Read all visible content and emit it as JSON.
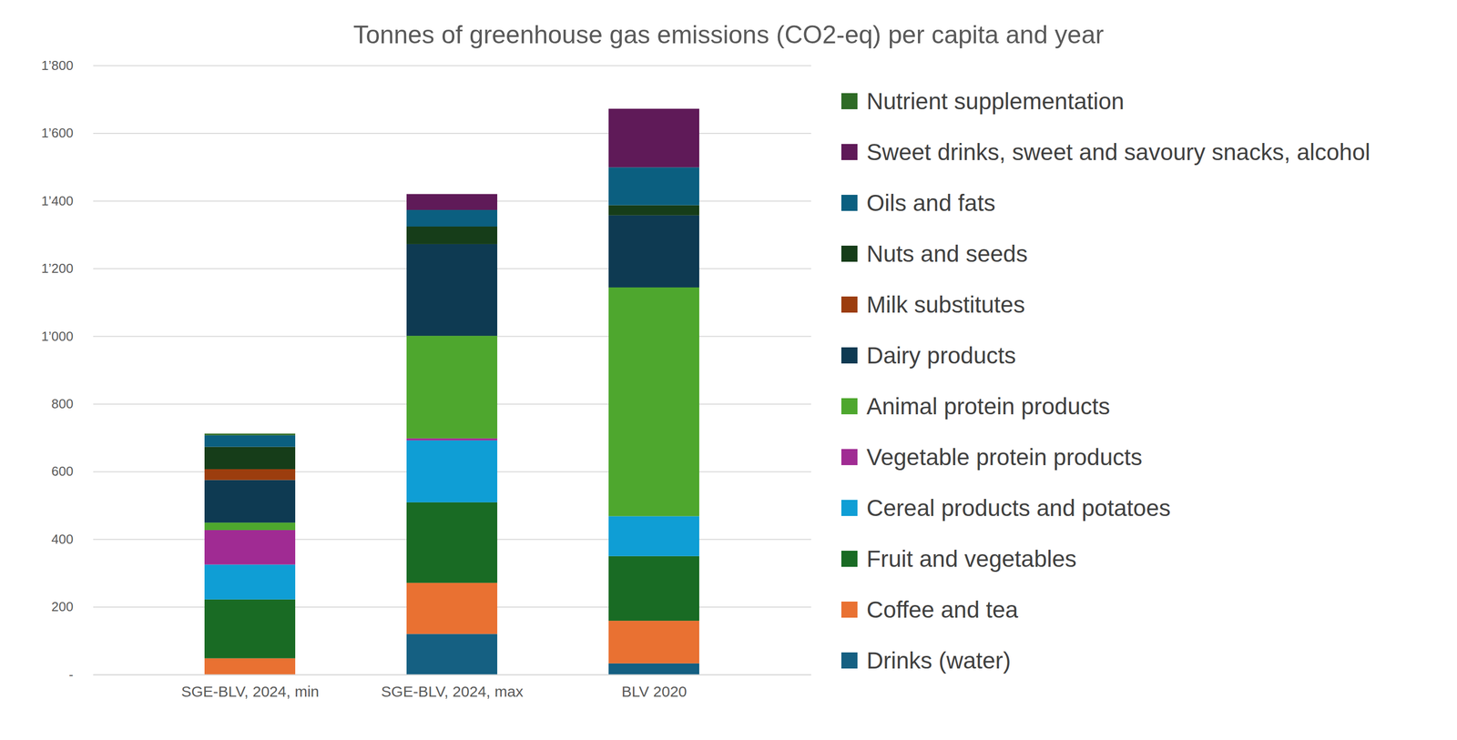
{
  "chart_data": {
    "type": "bar",
    "stacked": true,
    "title": "Tonnes of greenhouse gas emissions (CO2-eq) per capita and year",
    "categories": [
      "SGE-BLV, 2024, min",
      "SGE-BLV, 2024, max",
      "BLV 2020"
    ],
    "series": [
      {
        "name": "Drinks (water)",
        "color": "#156082",
        "values": [
          0,
          120,
          33
        ]
      },
      {
        "name": "Coffee and tea",
        "color": "#e97132",
        "values": [
          48,
          151,
          126
        ]
      },
      {
        "name": "Fruit and vegetables",
        "color": "#196b24",
        "values": [
          174,
          238,
          191
        ]
      },
      {
        "name": "Cereal products and potatoes",
        "color": "#0f9ed5",
        "values": [
          103,
          183,
          118
        ]
      },
      {
        "name": "Vegetable protein products",
        "color": "#a02b93",
        "values": [
          102,
          6,
          0
        ]
      },
      {
        "name": "Animal protein products",
        "color": "#4ea72e",
        "values": [
          22,
          303,
          676
        ]
      },
      {
        "name": "Dairy products",
        "color": "#0e3a52",
        "values": [
          126,
          271,
          213
        ]
      },
      {
        "name": "Milk substitutes",
        "color": "#9c3d0e",
        "values": [
          32,
          0,
          0
        ]
      },
      {
        "name": "Nuts and seeds",
        "color": "#163d19",
        "values": [
          66,
          52,
          30
        ]
      },
      {
        "name": "Oils and fats",
        "color": "#0b5f80",
        "values": [
          34,
          49,
          112
        ]
      },
      {
        "name": "Sweet drinks, sweet and savoury snacks, alcohol",
        "color": "#5f1a58",
        "values": [
          0,
          47,
          173
        ]
      },
      {
        "name": "Nutrient supplementation",
        "color": "#2e6b25",
        "values": [
          5,
          0,
          0
        ]
      }
    ],
    "ylim": [
      0,
      1800
    ],
    "yticks": [
      {
        "value": 0,
        "label": "-"
      },
      200,
      400,
      600,
      800,
      {
        "value": 1000,
        "label": "1’000"
      },
      {
        "value": 1200,
        "label": "1’200"
      },
      {
        "value": 1400,
        "label": "1’400"
      },
      {
        "value": 1600,
        "label": "1’600"
      },
      {
        "value": 1800,
        "label": "1’800"
      }
    ],
    "grid": true,
    "legend": "right"
  }
}
